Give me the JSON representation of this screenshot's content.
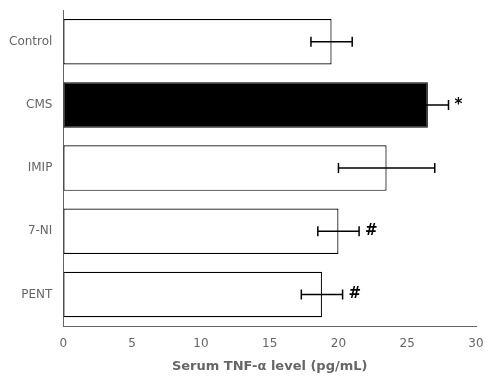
{
  "chart_data": {
    "type": "bar",
    "orientation": "horizontal",
    "categories": [
      "Control",
      "CMS",
      "IMIP",
      "7-NI",
      "PENT"
    ],
    "values": [
      19.5,
      26.5,
      23.5,
      20.0,
      18.8
    ],
    "errors": [
      1.5,
      1.5,
      3.5,
      1.5,
      1.5
    ],
    "colors": [
      "white",
      "black",
      "white",
      "white",
      "white"
    ],
    "annotations": [
      {
        "category": "CMS",
        "text": "*"
      },
      {
        "category": "7-NI",
        "text": "#"
      },
      {
        "category": "PENT",
        "text": "#"
      }
    ],
    "xlabel": "Serum TNF-α level (pg/mL)",
    "xlim": [
      0,
      30
    ],
    "xticks": [
      0,
      5,
      10,
      15,
      20,
      25,
      30
    ],
    "grid": false
  }
}
